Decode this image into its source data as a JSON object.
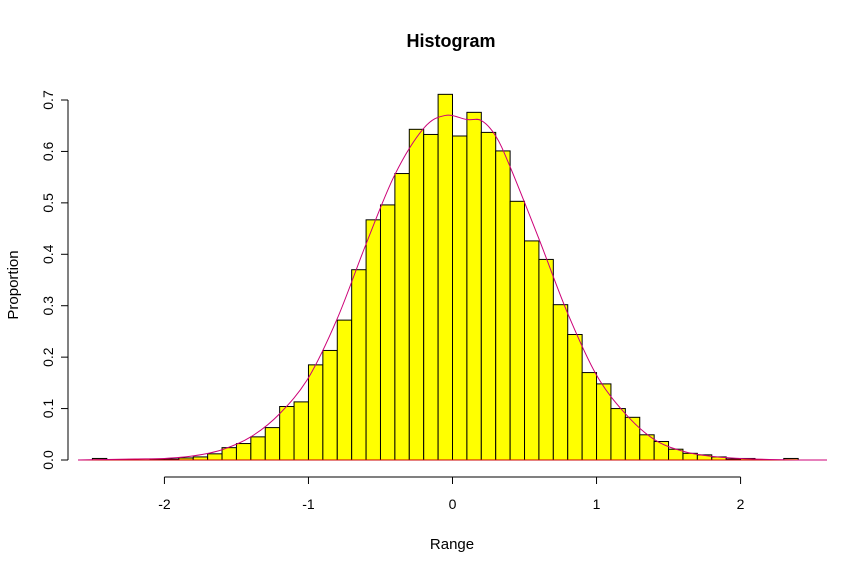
{
  "chart_data": {
    "type": "bar",
    "title": "Histogram",
    "xlabel": "Range",
    "ylabel": "Proportion",
    "xlim": [
      -2.6,
      2.6
    ],
    "ylim": [
      0,
      0.7
    ],
    "xticks": [
      -2,
      -1,
      0,
      1,
      2
    ],
    "yticks": [
      0.0,
      0.1,
      0.2,
      0.3,
      0.4,
      0.5,
      0.6,
      0.7
    ],
    "xtick_labels": [
      "-2",
      "-1",
      "0",
      "1",
      "2"
    ],
    "ytick_labels": [
      "0.0",
      "0.1",
      "0.2",
      "0.3",
      "0.4",
      "0.5",
      "0.6",
      "0.7"
    ],
    "grid": false,
    "bin_width": 0.1,
    "bins": [
      {
        "x0": -2.5,
        "x1": -2.4,
        "y": 0.003
      },
      {
        "x0": -2.4,
        "x1": -2.3,
        "y": 0.0
      },
      {
        "x0": -2.3,
        "x1": -2.2,
        "y": 0.0
      },
      {
        "x0": -2.2,
        "x1": -2.1,
        "y": 0.0
      },
      {
        "x0": -2.1,
        "x1": -2.0,
        "y": 0.002
      },
      {
        "x0": -2.0,
        "x1": -1.9,
        "y": 0.002
      },
      {
        "x0": -1.9,
        "x1": -1.8,
        "y": 0.004
      },
      {
        "x0": -1.8,
        "x1": -1.7,
        "y": 0.006
      },
      {
        "x0": -1.7,
        "x1": -1.6,
        "y": 0.012
      },
      {
        "x0": -1.6,
        "x1": -1.5,
        "y": 0.024
      },
      {
        "x0": -1.5,
        "x1": -1.4,
        "y": 0.032
      },
      {
        "x0": -1.4,
        "x1": -1.3,
        "y": 0.045
      },
      {
        "x0": -1.3,
        "x1": -1.2,
        "y": 0.063
      },
      {
        "x0": -1.2,
        "x1": -1.1,
        "y": 0.104
      },
      {
        "x0": -1.1,
        "x1": -1.0,
        "y": 0.113
      },
      {
        "x0": -1.0,
        "x1": -0.9,
        "y": 0.185
      },
      {
        "x0": -0.9,
        "x1": -0.8,
        "y": 0.213
      },
      {
        "x0": -0.8,
        "x1": -0.7,
        "y": 0.272
      },
      {
        "x0": -0.7,
        "x1": -0.6,
        "y": 0.37
      },
      {
        "x0": -0.6,
        "x1": -0.5,
        "y": 0.467
      },
      {
        "x0": -0.5,
        "x1": -0.4,
        "y": 0.496
      },
      {
        "x0": -0.4,
        "x1": -0.3,
        "y": 0.557
      },
      {
        "x0": -0.3,
        "x1": -0.2,
        "y": 0.643
      },
      {
        "x0": -0.2,
        "x1": -0.1,
        "y": 0.633
      },
      {
        "x0": -0.1,
        "x1": 0.0,
        "y": 0.711
      },
      {
        "x0": 0.0,
        "x1": 0.1,
        "y": 0.63
      },
      {
        "x0": 0.1,
        "x1": 0.2,
        "y": 0.676
      },
      {
        "x0": 0.2,
        "x1": 0.3,
        "y": 0.637
      },
      {
        "x0": 0.3,
        "x1": 0.4,
        "y": 0.601
      },
      {
        "x0": 0.4,
        "x1": 0.5,
        "y": 0.503
      },
      {
        "x0": 0.5,
        "x1": 0.6,
        "y": 0.426
      },
      {
        "x0": 0.6,
        "x1": 0.7,
        "y": 0.39
      },
      {
        "x0": 0.7,
        "x1": 0.8,
        "y": 0.302
      },
      {
        "x0": 0.8,
        "x1": 0.9,
        "y": 0.244
      },
      {
        "x0": 0.9,
        "x1": 1.0,
        "y": 0.17
      },
      {
        "x0": 1.0,
        "x1": 1.1,
        "y": 0.148
      },
      {
        "x0": 1.1,
        "x1": 1.2,
        "y": 0.1
      },
      {
        "x0": 1.2,
        "x1": 1.3,
        "y": 0.083
      },
      {
        "x0": 1.3,
        "x1": 1.4,
        "y": 0.049
      },
      {
        "x0": 1.4,
        "x1": 1.5,
        "y": 0.036
      },
      {
        "x0": 1.5,
        "x1": 1.6,
        "y": 0.021
      },
      {
        "x0": 1.6,
        "x1": 1.7,
        "y": 0.013
      },
      {
        "x0": 1.7,
        "x1": 1.8,
        "y": 0.01
      },
      {
        "x0": 1.8,
        "x1": 1.9,
        "y": 0.006
      },
      {
        "x0": 1.9,
        "x1": 2.0,
        "y": 0.002
      },
      {
        "x0": 2.0,
        "x1": 2.1,
        "y": 0.003
      },
      {
        "x0": 2.1,
        "x1": 2.2,
        "y": 0.0
      },
      {
        "x0": 2.2,
        "x1": 2.3,
        "y": 0.0
      },
      {
        "x0": 2.3,
        "x1": 2.4,
        "y": 0.003
      }
    ],
    "density_curve": {
      "x": [
        -2.6,
        -2.4,
        -2.2,
        -2.0,
        -1.8,
        -1.6,
        -1.4,
        -1.2,
        -1.0,
        -0.8,
        -0.6,
        -0.4,
        -0.2,
        -0.05,
        0.1,
        0.2,
        0.3,
        0.4,
        0.6,
        0.8,
        1.0,
        1.2,
        1.4,
        1.6,
        1.8,
        2.0,
        2.2,
        2.4,
        2.6
      ],
      "y": [
        0.0,
        0.001,
        0.002,
        0.003,
        0.008,
        0.02,
        0.045,
        0.09,
        0.16,
        0.275,
        0.42,
        0.555,
        0.645,
        0.67,
        0.662,
        0.66,
        0.63,
        0.57,
        0.43,
        0.285,
        0.165,
        0.09,
        0.04,
        0.017,
        0.007,
        0.003,
        0.001,
        0.0,
        0.0
      ]
    },
    "colors": {
      "bar_fill": "#ffff00",
      "bar_stroke": "#000000",
      "curve": "#cc0077",
      "baseline": "#cc0000"
    }
  }
}
